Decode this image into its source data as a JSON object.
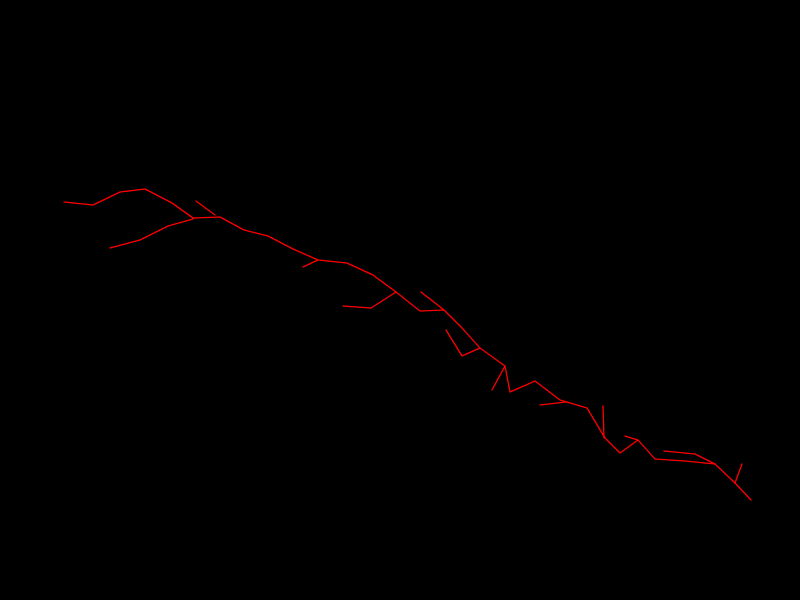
{
  "scene": {
    "background_color": "#000000",
    "line_color": "#ff0000",
    "subject": "crack-trace"
  }
}
